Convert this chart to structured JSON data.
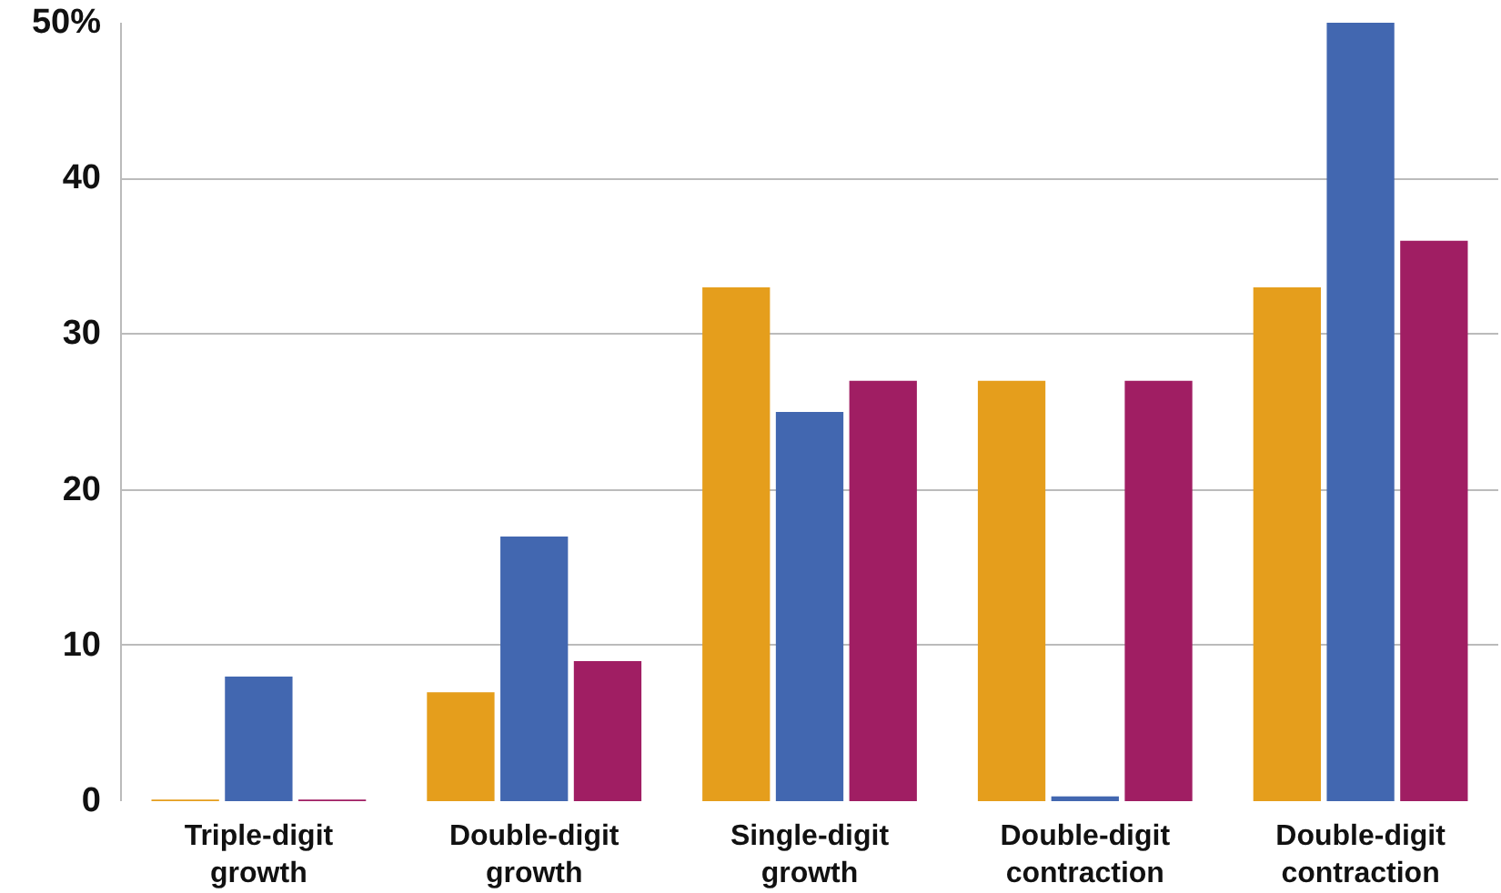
{
  "chart_data": {
    "type": "bar",
    "categories": [
      "Triple-digit growth",
      "Double-digit growth",
      "Single-digit growth",
      "Double-digit contraction",
      "Double-digit contraction"
    ],
    "series": [
      {
        "color": "#e59e1c",
        "values": [
          0.1,
          7,
          33,
          27,
          33
        ]
      },
      {
        "color": "#4267b0",
        "values": [
          8,
          17,
          25,
          0.3,
          50
        ]
      },
      {
        "color": "#a01e63",
        "values": [
          0.1,
          9,
          27,
          27,
          36
        ]
      }
    ],
    "ylim": [
      0,
      50
    ],
    "yticks": [
      0,
      10,
      20,
      30,
      40,
      {
        "value": 50,
        "label": "50%"
      }
    ],
    "grid": "y"
  }
}
